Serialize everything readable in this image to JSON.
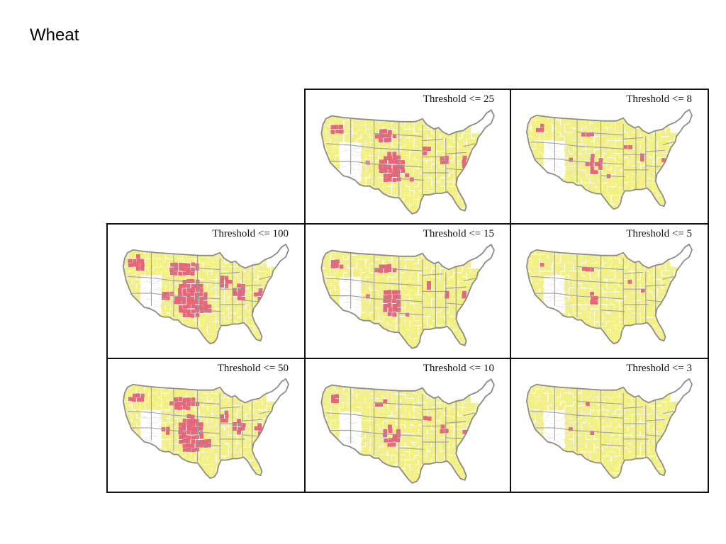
{
  "slide": {
    "title": "Wheat"
  },
  "colors": {
    "background_states": "#ffffff",
    "county_yellow": "#f4f27e",
    "highlight_red": "#e8687a",
    "state_border": "#9a9a9a",
    "outline": "#8c8c8c",
    "panel_border": "#111111"
  },
  "panels": [
    {
      "id": "t25",
      "label": "Threshold <= 25",
      "threshold": 25,
      "red_level": 0.55
    },
    {
      "id": "t8",
      "label": "Threshold <= 8",
      "threshold": 8,
      "red_level": 0.22
    },
    {
      "id": "t100",
      "label": "Threshold <= 100",
      "threshold": 100,
      "red_level": 1.0
    },
    {
      "id": "t15",
      "label": "Threshold <= 15",
      "threshold": 15,
      "red_level": 0.38
    },
    {
      "id": "t5",
      "label": "Threshold <= 5",
      "threshold": 5,
      "red_level": 0.14
    },
    {
      "id": "t50",
      "label": "Threshold <= 50",
      "threshold": 50,
      "red_level": 0.8
    },
    {
      "id": "t10",
      "label": "Threshold <= 10",
      "threshold": 10,
      "red_level": 0.28
    },
    {
      "id": "t3",
      "label": "Threshold <= 3",
      "threshold": 3,
      "red_level": 0.05
    }
  ]
}
